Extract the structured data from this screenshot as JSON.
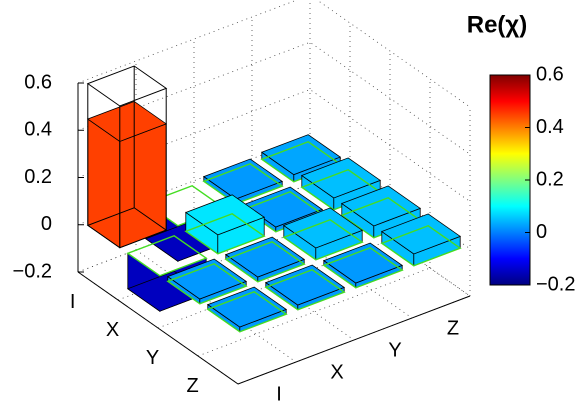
{
  "chart_data": {
    "type": "bar3d",
    "title": "Re(χ)",
    "row_categories": [
      "I",
      "X",
      "Y",
      "Z"
    ],
    "column_categories": [
      "I",
      "X",
      "Y",
      "Z"
    ],
    "values": [
      [
        0.45,
        -0.15,
        0.02,
        0.03
      ],
      [
        -0.15,
        0.08,
        0.02,
        0.05
      ],
      [
        0.02,
        0.02,
        0.05,
        0.05
      ],
      [
        0.02,
        0.02,
        0.02,
        0.05
      ]
    ],
    "ideal_values": [
      [
        0.6,
        0,
        0,
        0
      ],
      [
        0,
        0,
        0,
        0
      ],
      [
        0,
        0,
        0,
        0
      ],
      [
        0,
        0,
        0,
        0
      ]
    ],
    "zlim": [
      -0.2,
      0.6
    ],
    "zticks": [
      {
        "value": -0.2,
        "label": "−0.2"
      },
      0,
      0.2,
      0.4,
      0.6
    ],
    "colormap": "jet",
    "clim": [
      -0.2,
      0.6
    ],
    "colorbar_ticks": [
      {
        "value": -0.2,
        "label": "−0.2"
      },
      0,
      0.2,
      0.4,
      0.6
    ],
    "grid": true
  }
}
